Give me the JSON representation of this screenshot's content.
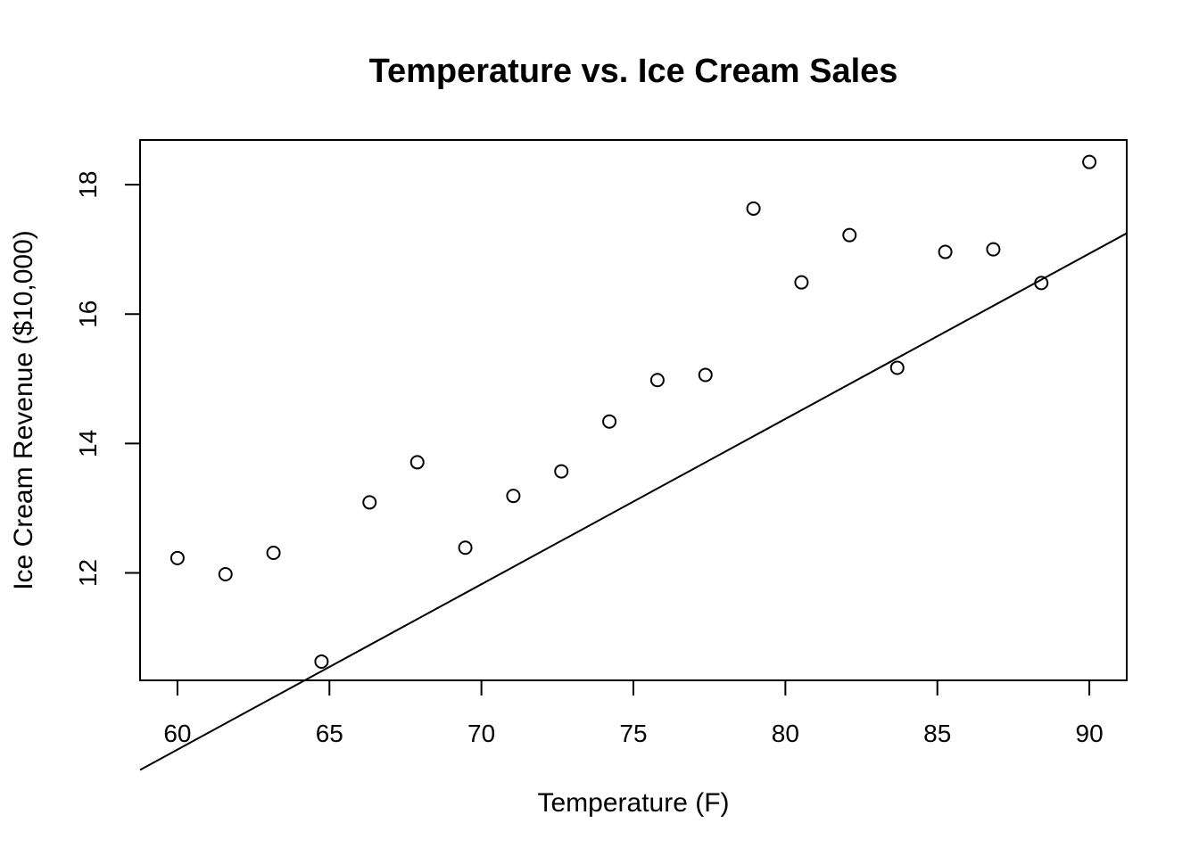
{
  "chart_data": {
    "type": "scatter",
    "title": "Temperature vs. Ice Cream Sales",
    "xlabel": "Temperature (F)",
    "ylabel": "Ice Cream Revenue ($10,000)",
    "xlim": [
      58.77,
      91.23
    ],
    "ylim": [
      10.34,
      18.69
    ],
    "x_ticks": [
      60,
      65,
      70,
      75,
      80,
      85,
      90
    ],
    "y_ticks": [
      12,
      14,
      16,
      18
    ],
    "grid": false,
    "legend": "none",
    "x": [
      60.0,
      61.58,
      63.16,
      64.74,
      66.32,
      67.89,
      69.47,
      71.05,
      72.63,
      74.21,
      75.79,
      77.37,
      78.95,
      80.53,
      82.11,
      83.68,
      85.26,
      86.84,
      88.42,
      90.0
    ],
    "y": [
      12.23,
      11.98,
      12.31,
      10.63,
      13.09,
      13.71,
      12.39,
      13.19,
      13.57,
      14.34,
      14.98,
      15.06,
      17.63,
      16.49,
      17.22,
      15.17,
      16.96,
      17.0,
      16.48,
      18.35
    ],
    "fit_line": {
      "intercept": -6.06,
      "slope": 0.2555
    }
  }
}
